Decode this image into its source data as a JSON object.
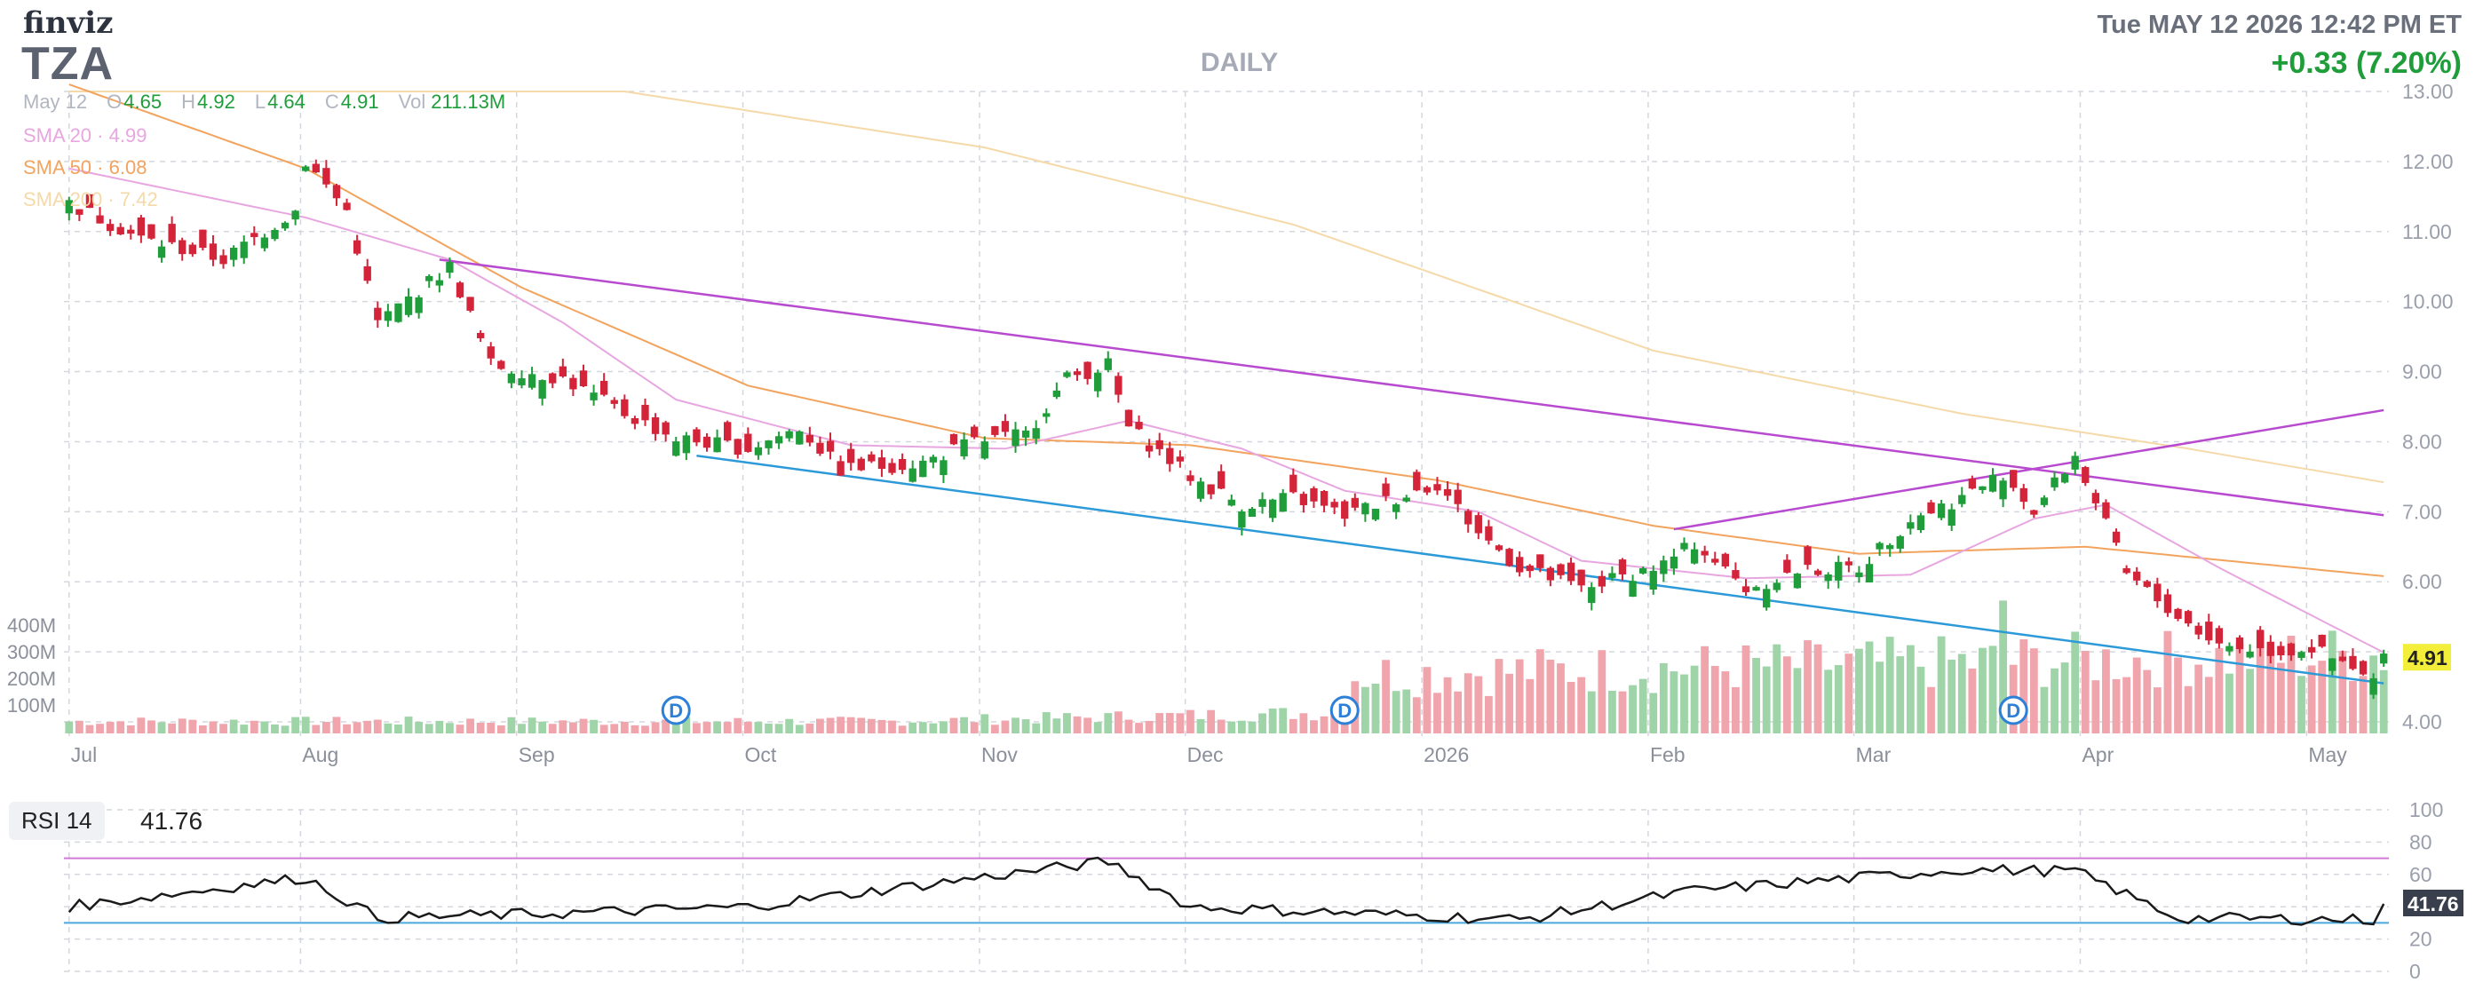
{
  "header": {
    "logo": "finviz",
    "ticker": "TZA",
    "timeframe": "DAILY",
    "datetime": "Tue MAY 12 2026 12:42 PM ET",
    "change": "+0.33 (7.20%)"
  },
  "ohlc": {
    "date": "May 12",
    "open_label": "O",
    "open": "4.65",
    "high_label": "H",
    "high": "4.92",
    "low_label": "L",
    "low": "4.64",
    "close_label": "C",
    "close": "4.91",
    "vol_label": "Vol",
    "vol": "211.13M"
  },
  "indicators": {
    "sma20": {
      "label": "SMA 20",
      "value": "4.99",
      "color": "#e8a6e0"
    },
    "sma50": {
      "label": "SMA 50",
      "value": "6.08",
      "color": "#f2a35e"
    },
    "sma200": {
      "label": "SMA 200",
      "value": "7.42",
      "color": "#f5d9a8"
    },
    "sep": "·"
  },
  "rsi": {
    "label": "RSI 14",
    "value": "41.76"
  },
  "colors": {
    "up": "#1f9d3a",
    "down": "#d4243a",
    "vol_up": "#9fd3a8",
    "vol_down": "#f0a4ac",
    "trend_upper": "#b84ad0",
    "trend_lower": "#2c9ad8",
    "rsi_over": "#d27ad8",
    "rsi_under": "#49a8e0"
  },
  "chart_data": [
    {
      "type": "candlestick",
      "x_labels": [
        "Jul",
        "Aug",
        "Sep",
        "Oct",
        "Nov",
        "Dec",
        "2026",
        "Feb",
        "Mar",
        "Apr",
        "May"
      ],
      "y_ticks": [
        "13.00",
        "12.00",
        "11.00",
        "10.00",
        "9.00",
        "8.00",
        "7.00",
        "6.00",
        "5.00",
        "4.00"
      ],
      "ylim": [
        4.0,
        13.0
      ],
      "volume_ticks": [
        "400M",
        "300M",
        "200M",
        "100M"
      ],
      "last_price": "4.91",
      "dividend_marker": "D",
      "dividend_dates": [
        "2025-09-22",
        "2025-12-22",
        "2026-03-23"
      ],
      "series_labels": [
        "SMA 20",
        "SMA 50",
        "SMA 200"
      ],
      "close_anchors": [
        [
          "2025-07-01",
          11.4
        ],
        [
          "2025-07-10",
          10.9
        ],
        [
          "2025-07-22",
          10.6
        ],
        [
          "2025-07-31",
          11.3
        ],
        [
          "2025-08-01",
          12.0
        ],
        [
          "2025-08-07",
          11.3
        ],
        [
          "2025-08-12",
          9.7
        ],
        [
          "2025-08-21",
          10.5
        ],
        [
          "2025-08-27",
          9.1
        ],
        [
          "2025-09-05",
          8.9
        ],
        [
          "2025-09-15",
          8.4
        ],
        [
          "2025-09-22",
          8.05
        ],
        [
          "2025-10-01",
          7.9
        ],
        [
          "2025-10-08",
          8.2
        ],
        [
          "2025-10-14",
          7.6
        ],
        [
          "2025-10-24",
          7.7
        ],
        [
          "2025-10-31",
          8.0
        ],
        [
          "2025-11-07",
          8.1
        ],
        [
          "2025-11-13",
          8.9
        ],
        [
          "2025-11-19",
          9.1
        ],
        [
          "2025-11-21",
          8.2
        ],
        [
          "2025-12-01",
          7.5
        ],
        [
          "2025-12-08",
          7.1
        ],
        [
          "2025-12-15",
          7.2
        ],
        [
          "2025-12-22",
          6.95
        ],
        [
          "2026-01-02",
          7.4
        ],
        [
          "2026-01-08",
          6.7
        ],
        [
          "2026-01-14",
          6.2
        ],
        [
          "2026-01-22",
          5.9
        ],
        [
          "2026-02-03",
          6.25
        ],
        [
          "2026-02-06",
          6.55
        ],
        [
          "2026-02-13",
          5.9
        ],
        [
          "2026-02-20",
          6.15
        ],
        [
          "2026-03-02",
          6.2
        ],
        [
          "2026-03-09",
          6.9
        ],
        [
          "2026-03-16",
          7.2
        ],
        [
          "2026-03-20",
          7.55
        ],
        [
          "2026-03-25",
          7.0
        ],
        [
          "2026-03-31",
          7.8
        ],
        [
          "2026-04-03",
          6.8
        ],
        [
          "2026-04-07",
          6.1
        ],
        [
          "2026-04-14",
          5.5
        ],
        [
          "2026-04-20",
          5.1
        ],
        [
          "2026-04-28",
          5.0
        ],
        [
          "2026-05-01",
          5.05
        ],
        [
          "2026-05-06",
          4.8
        ],
        [
          "2026-05-11",
          4.58
        ],
        [
          "2026-05-12",
          4.91
        ]
      ],
      "sma20_anchors": [
        [
          "2025-07-01",
          11.9
        ],
        [
          "2025-08-01",
          11.2
        ],
        [
          "2025-08-21",
          10.6
        ],
        [
          "2025-09-05",
          9.7
        ],
        [
          "2025-09-22",
          8.6
        ],
        [
          "2025-10-15",
          7.95
        ],
        [
          "2025-11-05",
          7.9
        ],
        [
          "2025-11-21",
          8.3
        ],
        [
          "2025-12-08",
          7.9
        ],
        [
          "2025-12-22",
          7.3
        ],
        [
          "2026-01-08",
          7.0
        ],
        [
          "2026-01-22",
          6.3
        ],
        [
          "2026-02-13",
          6.05
        ],
        [
          "2026-03-09",
          6.1
        ],
        [
          "2026-03-25",
          6.9
        ],
        [
          "2026-04-03",
          7.1
        ],
        [
          "2026-04-20",
          6.2
        ],
        [
          "2026-05-12",
          4.99
        ]
      ],
      "sma50_anchors": [
        [
          "2025-07-01",
          13.1
        ],
        [
          "2025-08-01",
          11.9
        ],
        [
          "2025-09-01",
          10.2
        ],
        [
          "2025-10-01",
          8.8
        ],
        [
          "2025-11-03",
          8.05
        ],
        [
          "2025-12-01",
          7.95
        ],
        [
          "2026-01-02",
          7.45
        ],
        [
          "2026-02-02",
          6.8
        ],
        [
          "2026-03-02",
          6.4
        ],
        [
          "2026-04-01",
          6.5
        ],
        [
          "2026-05-12",
          6.08
        ]
      ],
      "sma200_anchors": [
        [
          "2025-09-15",
          13.0
        ],
        [
          "2025-11-03",
          12.2
        ],
        [
          "2025-12-15",
          11.1
        ],
        [
          "2026-02-02",
          9.3
        ],
        [
          "2026-03-16",
          8.4
        ],
        [
          "2026-04-15",
          7.9
        ],
        [
          "2026-05-12",
          7.42
        ]
      ],
      "trendlines": [
        {
          "name": "upper-resistance",
          "from": [
            "2025-08-20",
            10.6
          ],
          "to": [
            "2026-05-12",
            6.95
          ]
        },
        {
          "name": "upper-channel",
          "from": [
            "2026-02-04",
            6.75
          ],
          "to": [
            "2026-05-12",
            8.45
          ]
        },
        {
          "name": "lower-support",
          "from": [
            "2025-09-24",
            7.8
          ],
          "to": [
            "2026-05-12",
            4.55
          ]
        }
      ]
    },
    {
      "type": "line",
      "name": "RSI 14",
      "y_ticks": [
        "100",
        "80",
        "60",
        "40",
        "20",
        "0"
      ],
      "ylim": [
        0,
        100
      ],
      "overbought": 70,
      "oversold": 30,
      "last_value": "41.76",
      "values_anchors": [
        [
          "2025-07-01",
          40
        ],
        [
          "2025-08-01",
          58
        ],
        [
          "2025-08-12",
          33
        ],
        [
          "2025-09-05",
          36
        ],
        [
          "2025-10-01",
          40
        ],
        [
          "2025-11-19",
          68
        ],
        [
          "2025-12-01",
          40
        ],
        [
          "2026-01-14",
          32
        ],
        [
          "2026-02-06",
          50
        ],
        [
          "2026-03-16",
          63
        ],
        [
          "2026-03-31",
          62
        ],
        [
          "2026-04-14",
          33
        ],
        [
          "2026-05-11",
          32
        ],
        [
          "2026-05-12",
          41.76
        ]
      ]
    }
  ]
}
